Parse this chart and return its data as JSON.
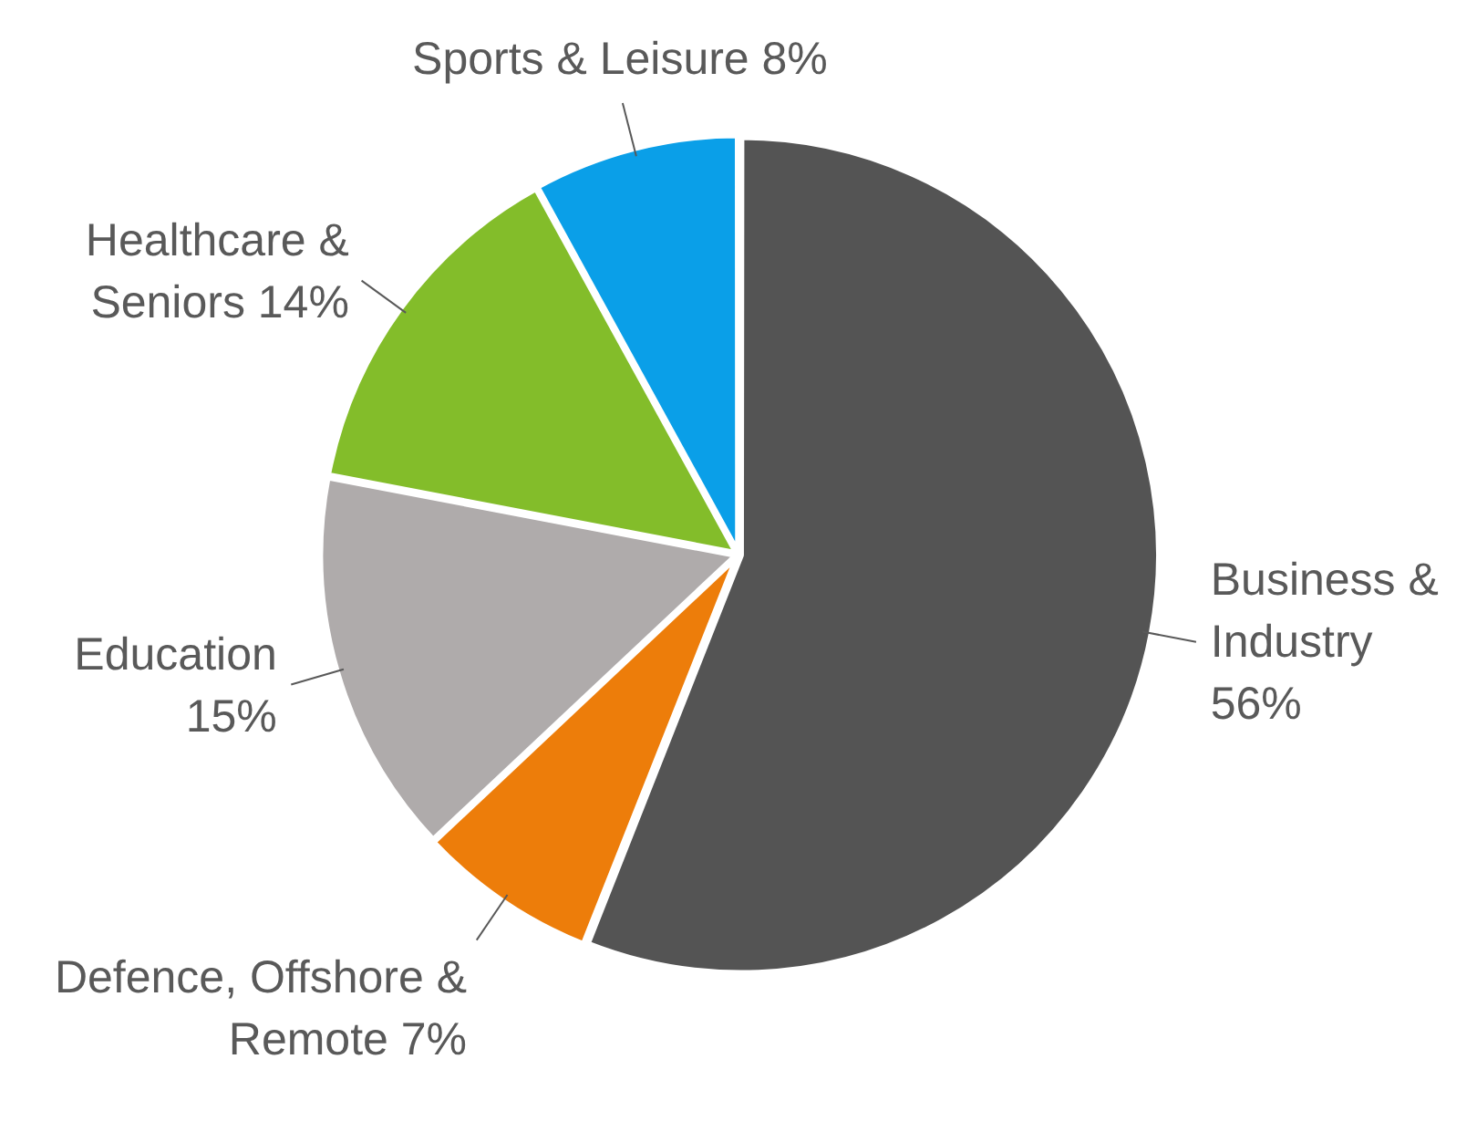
{
  "chart_data": {
    "type": "pie",
    "categories": [
      "Business & Industry",
      "Defence, Offshore & Remote",
      "Education",
      "Healthcare & Seniors",
      "Sports & Leisure"
    ],
    "values": [
      56,
      7,
      15,
      14,
      8
    ],
    "value_labels": [
      "56%",
      "7%",
      "15%",
      "14%",
      "8%"
    ],
    "colors": [
      "#545454",
      "#ed7d0a",
      "#afabab",
      "#83bd2a",
      "#0a9fe8"
    ],
    "legend": false
  }
}
